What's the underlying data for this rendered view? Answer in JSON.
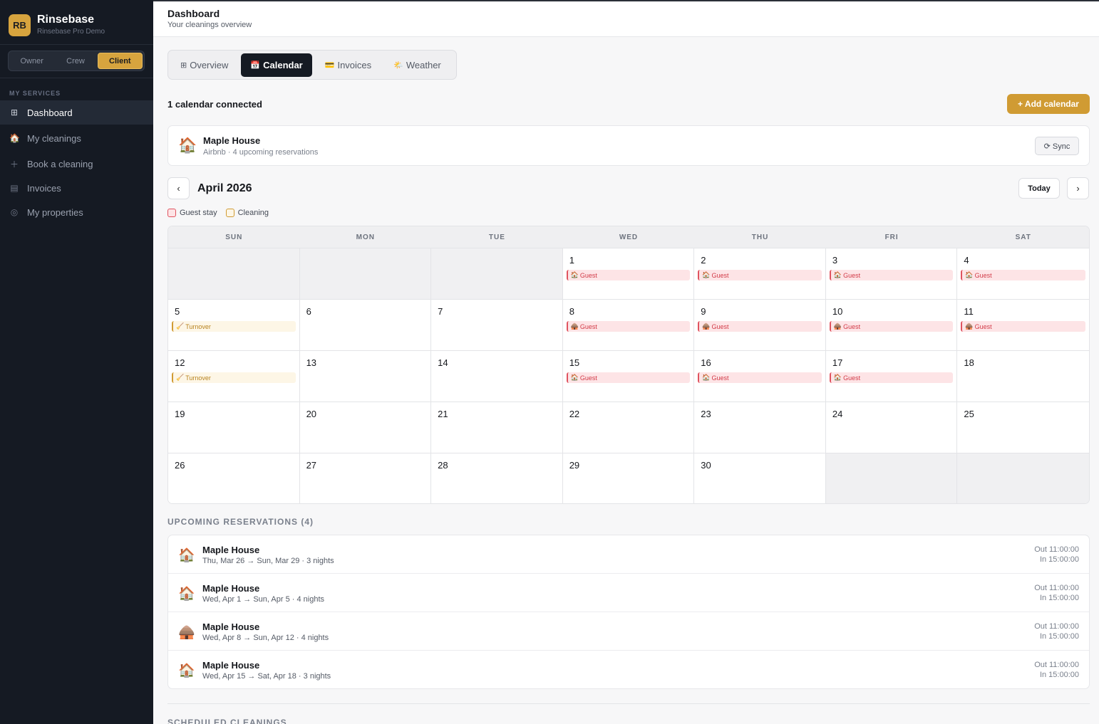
{
  "app": {
    "logo_initials": "RB",
    "name": "Rinsebase",
    "subtitle": "Rinsebase Pro Demo",
    "accent_color": "#d7a43e"
  },
  "roles": [
    "Owner",
    "Crew",
    "Client"
  ],
  "active_role": "Client",
  "sidebar": {
    "section_label": "MY SERVICES",
    "items": [
      {
        "label": "Dashboard",
        "icon": "grid-icon",
        "active": true
      },
      {
        "label": "My cleanings",
        "icon": "house-icon",
        "active": false
      },
      {
        "label": "Book a cleaning",
        "icon": "plus-icon",
        "active": false
      },
      {
        "label": "Invoices",
        "icon": "invoice-icon",
        "active": false
      },
      {
        "label": "My properties",
        "icon": "target-icon",
        "active": false
      }
    ]
  },
  "header": {
    "title": "Dashboard",
    "subtitle": "Your cleanings overview"
  },
  "tabs": [
    {
      "icon": "⊞",
      "label": "Overview",
      "active": false
    },
    {
      "icon": "📅",
      "label": "Calendar",
      "active": true
    },
    {
      "icon": "💳",
      "label": "Invoices",
      "active": false
    },
    {
      "icon": "🌤️",
      "label": "Weather",
      "active": false
    }
  ],
  "calendars": {
    "connected_text": "1 calendar connected",
    "add_label": "+ Add calendar",
    "items": [
      {
        "icon": "🏠",
        "name": "Maple House",
        "meta": "Airbnb · 4 upcoming reservations",
        "sync_label": "⟳ Sync"
      }
    ]
  },
  "month_nav": {
    "prev": "‹",
    "next": "›",
    "title": "April 2026",
    "today_label": "Today"
  },
  "legend": [
    {
      "label": "Guest stay",
      "type": "guest"
    },
    {
      "label": "Cleaning",
      "type": "clean"
    }
  ],
  "calendar": {
    "weekdays": [
      "SUN",
      "MON",
      "TUE",
      "WED",
      "THU",
      "FRI",
      "SAT"
    ],
    "cells": [
      {
        "day": "",
        "empty": true
      },
      {
        "day": "",
        "empty": true
      },
      {
        "day": "",
        "empty": true
      },
      {
        "day": "1",
        "event": {
          "type": "guest",
          "icon": "🏠",
          "label": "Guest"
        }
      },
      {
        "day": "2",
        "event": {
          "type": "guest",
          "icon": "🏠",
          "label": "Guest"
        }
      },
      {
        "day": "3",
        "event": {
          "type": "guest",
          "icon": "🏠",
          "label": "Guest"
        }
      },
      {
        "day": "4",
        "event": {
          "type": "guest",
          "icon": "🏠",
          "label": "Guest"
        }
      },
      {
        "day": "5",
        "event": {
          "type": "clean",
          "icon": "🧹",
          "label": "Turnover"
        }
      },
      {
        "day": "6"
      },
      {
        "day": "7"
      },
      {
        "day": "8",
        "event": {
          "type": "guest",
          "icon": "🛖",
          "label": "Guest"
        }
      },
      {
        "day": "9",
        "event": {
          "type": "guest",
          "icon": "🛖",
          "label": "Guest"
        }
      },
      {
        "day": "10",
        "event": {
          "type": "guest",
          "icon": "🛖",
          "label": "Guest"
        }
      },
      {
        "day": "11",
        "event": {
          "type": "guest",
          "icon": "🛖",
          "label": "Guest"
        }
      },
      {
        "day": "12",
        "event": {
          "type": "clean",
          "icon": "🧹",
          "label": "Turnover"
        }
      },
      {
        "day": "13"
      },
      {
        "day": "14"
      },
      {
        "day": "15",
        "event": {
          "type": "guest",
          "icon": "🏠",
          "label": "Guest"
        }
      },
      {
        "day": "16",
        "event": {
          "type": "guest",
          "icon": "🏠",
          "label": "Guest"
        }
      },
      {
        "day": "17",
        "event": {
          "type": "guest",
          "icon": "🏠",
          "label": "Guest"
        }
      },
      {
        "day": "18"
      },
      {
        "day": "19"
      },
      {
        "day": "20"
      },
      {
        "day": "21"
      },
      {
        "day": "22"
      },
      {
        "day": "23"
      },
      {
        "day": "24"
      },
      {
        "day": "25"
      },
      {
        "day": "26"
      },
      {
        "day": "27"
      },
      {
        "day": "28"
      },
      {
        "day": "29"
      },
      {
        "day": "30"
      },
      {
        "day": "",
        "empty": true
      },
      {
        "day": "",
        "empty": true
      }
    ]
  },
  "reservations": {
    "label": "UPCOMING RESERVATIONS (4)",
    "items": [
      {
        "icon": "🏠",
        "name": "Maple House",
        "dates": "Thu, Mar 26 → Sun, Mar 29 · 3 nights",
        "out": "Out 11:00:00",
        "in": "In 15:00:00"
      },
      {
        "icon": "🏠",
        "name": "Maple House",
        "dates": "Wed, Apr 1 → Sun, Apr 5 · 4 nights",
        "out": "Out 11:00:00",
        "in": "In 15:00:00"
      },
      {
        "icon": "🛖",
        "name": "Maple House",
        "dates": "Wed, Apr 8 → Sun, Apr 12 · 4 nights",
        "out": "Out 11:00:00",
        "in": "In 15:00:00"
      },
      {
        "icon": "🏠",
        "name": "Maple House",
        "dates": "Wed, Apr 15 → Sat, Apr 18 · 3 nights",
        "out": "Out 11:00:00",
        "in": "In 15:00:00"
      }
    ]
  },
  "scheduled_label": "SCHEDULED CLEANINGS"
}
